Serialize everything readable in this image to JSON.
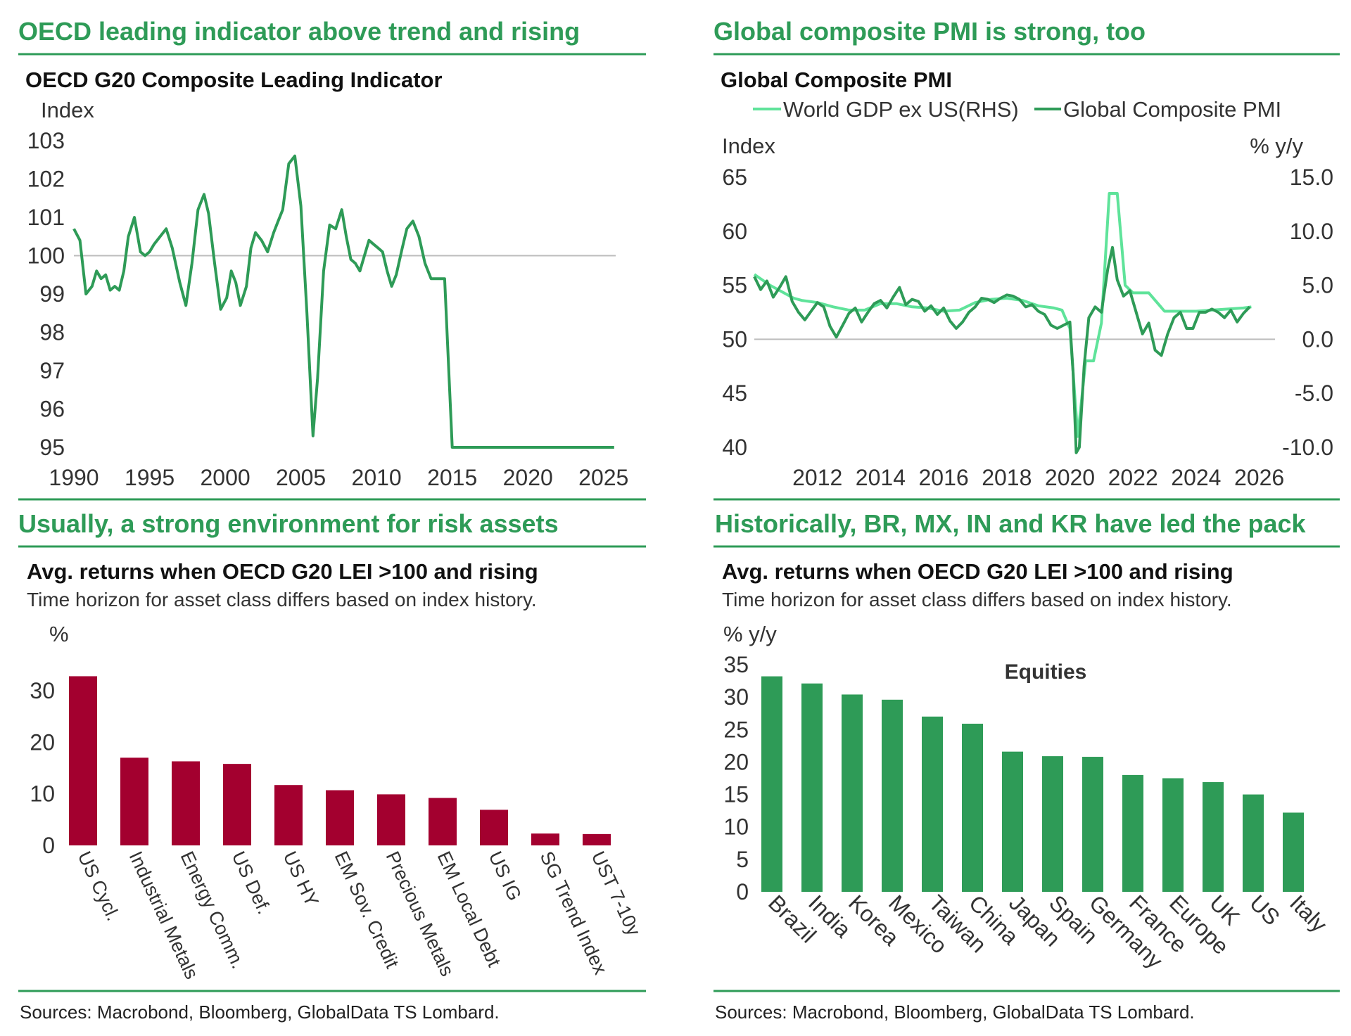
{
  "panels": {
    "top_left": {
      "headline": "OECD leading indicator above trend and rising",
      "title": "OECD G20 Composite Leading Indicator",
      "unit": "Index"
    },
    "top_right": {
      "headline": "Global composite PMI is strong, too",
      "title": "Global Composite PMI",
      "unit_left": "Index",
      "unit_right": "% y/y",
      "legend": [
        "World GDP ex US(RHS)",
        "Global Composite PMI"
      ]
    },
    "bottom_left": {
      "headline": "Usually, a strong environment for risk assets",
      "title": "Avg. returns when OECD G20 LEI >100 and rising",
      "subtitle": "Time horizon for asset class differs based on index history.",
      "unit": "%",
      "source": "Sources: Macrobond, Bloomberg, GlobalData TS Lombard."
    },
    "bottom_right": {
      "headline": "Historically, BR, MX, IN and KR have led the pack",
      "title": "Avg. returns when OECD G20 LEI >100 and rising",
      "subtitle": "Time horizon for asset class differs based on index history.",
      "unit": "% y/y",
      "inner_label": "Equities",
      "source": "Sources: Macrobond, Bloomberg, GlobalData TS Lombard."
    }
  },
  "colors": {
    "accent": "#2e9b57",
    "line_dark": "#2e9b57",
    "line_light": "#5fe39a",
    "bar_red": "#a3002f",
    "bar_green": "#2e9b57",
    "ref_line": "#bdbdbd"
  },
  "chart_data": [
    {
      "id": "cli",
      "type": "line",
      "title": "OECD G20 Composite Leading Indicator",
      "ylabel": "Index",
      "ylim": [
        95,
        103
      ],
      "yticks": [
        "103",
        "102",
        "101",
        "100",
        "99",
        "98",
        "97",
        "96",
        "95"
      ],
      "xlim": [
        1990,
        2026.5
      ],
      "xticks": [
        "1990",
        "1995",
        "2000",
        "2005",
        "2010",
        "2015",
        "2020",
        "2025"
      ],
      "reference": 100,
      "x": [
        1990,
        1990.4,
        1990.8,
        1991.2,
        1991.5,
        1991.8,
        1992.1,
        1992.4,
        1992.7,
        1993.0,
        1993.3,
        1993.6,
        1994.0,
        1994.4,
        1994.7,
        1995.0,
        1995.3,
        1995.7,
        1996.1,
        1996.5,
        1997.0,
        1997.4,
        1997.8,
        1998.2,
        1998.6,
        1998.9,
        1999.3,
        1999.7,
        2000.1,
        2000.4,
        2000.7,
        2001.0,
        2001.4,
        2001.7,
        2002.0,
        2002.4,
        2002.8,
        2003.2,
        2003.5,
        2003.8,
        2004.2,
        2004.6,
        2005.0,
        2005.4,
        2005.8,
        2006.1,
        2006.5,
        2006.9,
        2007.3,
        2007.7,
        2008.0,
        2008.3,
        2008.6,
        2008.9,
        2009.2,
        2009.5,
        2009.8,
        2010.1,
        2010.4,
        2010.7,
        2011.0,
        2011.3,
        2011.7,
        2012.0,
        2012.4,
        2012.8,
        2013.2,
        2013.6,
        2014.0,
        2014.5,
        2015.0,
        2015.4,
        2015.8,
        2016.2,
        2016.6,
        2017.0,
        2017.5,
        2017.9,
        2018.3,
        2018.7,
        2019.1,
        2019.5,
        2019.8,
        2020.0,
        2020.15,
        2020.3,
        2020.45,
        2020.6,
        2020.8,
        2021.0,
        2021.3,
        2021.6,
        2021.9,
        2022.2,
        2022.5,
        2022.8,
        2023.1,
        2023.4,
        2023.7,
        2024.0,
        2024.3,
        2024.6,
        2025.0,
        2025.4,
        2025.7
      ],
      "y": [
        100.7,
        100.4,
        99.0,
        99.2,
        99.6,
        99.4,
        99.5,
        99.1,
        99.2,
        99.1,
        99.6,
        100.5,
        101.0,
        100.1,
        100.0,
        100.1,
        100.3,
        100.5,
        100.7,
        100.2,
        99.3,
        98.7,
        99.8,
        101.2,
        101.6,
        101.1,
        99.8,
        98.6,
        98.9,
        99.6,
        99.3,
        98.7,
        99.2,
        100.2,
        100.6,
        100.4,
        100.1,
        100.6,
        100.9,
        101.2,
        102.4,
        102.6,
        101.3,
        98.5,
        95.3,
        96.8,
        99.6,
        100.8,
        100.7,
        101.2,
        100.5,
        99.9,
        99.8,
        99.6,
        100.0,
        100.4,
        100.3,
        100.2,
        100.1,
        99.6,
        99.2,
        99.5,
        100.2,
        100.7,
        100.9,
        100.5,
        99.8,
        99.4,
        99.4,
        99.4,
        95.0,
        95.0,
        95.0,
        95.0,
        95.0,
        95.0,
        95.0,
        95.0,
        95.0,
        95.0,
        95.0,
        95.0,
        95.0,
        95.0,
        95.0,
        95.0,
        95.0,
        95.0,
        95.0,
        95.0,
        95.0,
        95.0,
        95.0,
        95.0,
        95.0,
        95.0,
        95.0,
        95.0,
        95.0,
        95.0,
        95.0,
        95.0,
        95.0,
        95.0,
        95.0
      ]
    },
    {
      "id": "pmi",
      "type": "line",
      "title": "Global Composite PMI",
      "ylabel": "Index",
      "ylabel_right": "% y/y",
      "ylim": [
        40,
        65
      ],
      "ylim_right": [
        -10,
        15
      ],
      "yticks": [
        "65",
        "60",
        "55",
        "50",
        "45",
        "40"
      ],
      "yticks_right": [
        "15.0",
        "10.0",
        "5.0",
        "0.0",
        "-5.0",
        "-10.0"
      ],
      "xlim": [
        2010.0,
        2026.5
      ],
      "xticks": [
        "2012",
        "2014",
        "2016",
        "2018",
        "2020",
        "2022",
        "2024",
        "2026"
      ],
      "reference": 50,
      "series": [
        {
          "name": "World GDP ex US(RHS)",
          "axis": "right",
          "x": [
            2010.0,
            2010.25,
            2010.5,
            2010.75,
            2011.0,
            2011.25,
            2011.5,
            2011.75,
            2012.0,
            2012.5,
            2013.0,
            2013.5,
            2014.0,
            2014.5,
            2015.0,
            2015.5,
            2016.0,
            2016.5,
            2017.0,
            2017.5,
            2018.0,
            2018.5,
            2019.0,
            2019.5,
            2019.75,
            2020.0,
            2020.25,
            2020.5,
            2020.75,
            2021.0,
            2021.25,
            2021.5,
            2021.75,
            2022.0,
            2022.5,
            2023.0,
            2023.5,
            2024.0,
            2024.5,
            2025.0,
            2025.5,
            2025.75
          ],
          "y": [
            6.0,
            5.5,
            5.0,
            4.6,
            4.2,
            3.8,
            3.6,
            3.5,
            3.4,
            3.0,
            2.7,
            2.7,
            3.3,
            3.3,
            3.0,
            2.9,
            2.6,
            2.7,
            3.4,
            3.7,
            3.8,
            3.6,
            3.1,
            2.9,
            2.7,
            1.0,
            -9.0,
            -2.0,
            -2.0,
            1.5,
            13.5,
            13.5,
            5.0,
            4.3,
            4.3,
            2.6,
            2.6,
            2.6,
            2.7,
            2.8,
            2.9,
            3.0
          ]
        },
        {
          "name": "Global Composite PMI",
          "axis": "left",
          "x": [
            2010.0,
            2010.2,
            2010.4,
            2010.6,
            2010.8,
            2011.0,
            2011.2,
            2011.4,
            2011.6,
            2011.8,
            2012.0,
            2012.2,
            2012.4,
            2012.6,
            2012.8,
            2013.0,
            2013.2,
            2013.4,
            2013.6,
            2013.8,
            2014.0,
            2014.2,
            2014.4,
            2014.6,
            2014.8,
            2015.0,
            2015.2,
            2015.4,
            2015.6,
            2015.8,
            2016.0,
            2016.2,
            2016.4,
            2016.6,
            2016.8,
            2017.0,
            2017.2,
            2017.4,
            2017.6,
            2017.8,
            2018.0,
            2018.2,
            2018.4,
            2018.6,
            2018.8,
            2019.0,
            2019.2,
            2019.4,
            2019.6,
            2019.8,
            2020.0,
            2020.1,
            2020.2,
            2020.3,
            2020.45,
            2020.6,
            2020.8,
            2021.0,
            2021.2,
            2021.35,
            2021.5,
            2021.7,
            2021.9,
            2022.1,
            2022.3,
            2022.5,
            2022.7,
            2022.9,
            2023.1,
            2023.3,
            2023.5,
            2023.7,
            2023.9,
            2024.1,
            2024.3,
            2024.5,
            2024.7,
            2024.9,
            2025.1,
            2025.3,
            2025.5,
            2025.7
          ],
          "y": [
            55.8,
            54.6,
            55.4,
            53.9,
            54.8,
            55.8,
            53.5,
            52.5,
            51.8,
            52.6,
            53.4,
            53.0,
            51.2,
            50.2,
            51.3,
            52.4,
            52.9,
            51.6,
            52.5,
            53.3,
            53.6,
            52.9,
            53.9,
            54.8,
            53.2,
            53.7,
            53.5,
            52.6,
            53.1,
            52.3,
            52.9,
            51.7,
            51.0,
            51.6,
            52.5,
            53.0,
            53.8,
            53.7,
            53.4,
            53.8,
            54.1,
            54.0,
            53.7,
            53.0,
            53.2,
            52.6,
            52.3,
            51.3,
            51.0,
            51.3,
            51.6,
            47.0,
            39.5,
            40.0,
            47.5,
            52.0,
            53.0,
            52.5,
            56.5,
            58.5,
            55.5,
            54.0,
            54.5,
            52.5,
            50.5,
            51.5,
            49.0,
            48.5,
            50.5,
            52.0,
            52.5,
            51.0,
            51.0,
            52.5,
            52.5,
            52.8,
            52.5,
            52.0,
            52.7,
            51.6,
            52.4,
            53.0
          ]
        }
      ]
    },
    {
      "id": "assets",
      "type": "bar",
      "title": "Avg. returns when OECD G20 LEI >100 and rising",
      "ylabel": "%",
      "ylim": [
        0,
        30
      ],
      "yticks": [
        "30",
        "20",
        "10",
        "0"
      ],
      "categories": [
        "US Cycl.",
        "Industrial Metals",
        "Energy Comm.",
        "US Def.",
        "US HY",
        "EM Sov. Credit",
        "Precious Metals",
        "EM Local Debt",
        "US IG",
        "SG Trend Index",
        "UST 7-10y"
      ],
      "values": [
        32.8,
        17.0,
        16.3,
        15.8,
        11.7,
        10.7,
        9.9,
        9.2,
        6.9,
        2.3,
        2.2
      ]
    },
    {
      "id": "equities",
      "type": "bar",
      "title": "Avg. returns when OECD G20 LEI >100 and rising",
      "annotation": "Equities",
      "ylabel": "% y/y",
      "ylim": [
        0,
        35
      ],
      "yticks": [
        "35",
        "30",
        "25",
        "20",
        "15",
        "10",
        "5",
        "0"
      ],
      "categories": [
        "Brazil",
        "India",
        "Korea",
        "Mexico",
        "Taiwan",
        "China",
        "Japan",
        "Spain",
        "Germany",
        "France",
        "Europe",
        "UK",
        "US",
        "Italy"
      ],
      "values": [
        33.2,
        32.1,
        30.4,
        29.6,
        27.0,
        25.9,
        21.6,
        20.9,
        20.8,
        18.0,
        17.5,
        16.9,
        15.0,
        12.2
      ]
    }
  ]
}
